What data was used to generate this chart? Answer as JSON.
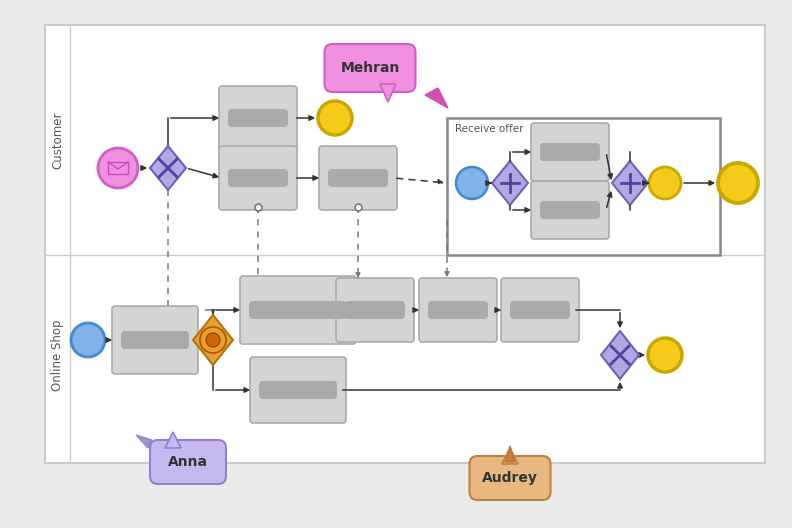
{
  "bg_color": "#ebebeb",
  "canvas_bg": "#ffffff",
  "lane1_label": "Customer",
  "lane2_label": "Online Shop",
  "lane_label_color": "#555555",
  "task_fill": "#d4d4d4",
  "task_edge": "#aaaaaa",
  "task_pill": "#aaaaaa",
  "yellow_fill": "#f5cb1a",
  "yellow_edge": "#c8a800",
  "blue_fill": "#80b4e8",
  "blue_edge": "#4488cc",
  "purple_fill": "#b0a8e0",
  "purple_edge": "#7060b8",
  "purple_sym": "#5540a0",
  "orange_fill": "#e8a030",
  "orange_edge": "#b87010",
  "pink_fill": "#f090e0",
  "pink_edge": "#d060c0",
  "lavender_fill": "#c8b8f0",
  "lavender_edge": "#9080d0",
  "peach_fill": "#e8b880",
  "peach_edge": "#c08040",
  "dashed_color": "#777777",
  "solid_color": "#333333",
  "receive_offer_label": "Receive offer",
  "mehran_label": "Mehran",
  "anna_label": "Anna",
  "audrey_label": "Audrey"
}
